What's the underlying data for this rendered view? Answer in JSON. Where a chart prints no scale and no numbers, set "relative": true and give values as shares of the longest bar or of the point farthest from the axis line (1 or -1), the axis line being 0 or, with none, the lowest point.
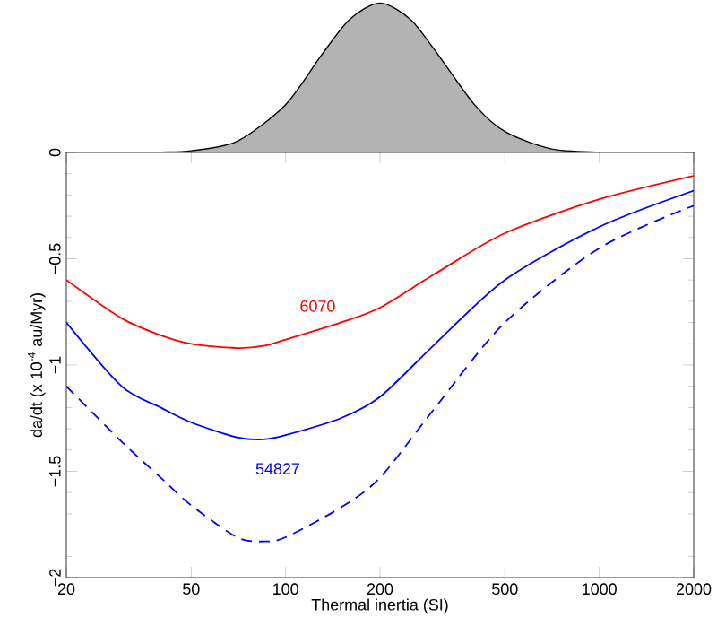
{
  "chart_data": [
    {
      "type": "area",
      "relative": true,
      "log": "x",
      "xlim": [
        20,
        2000
      ],
      "color": "#b3b3b3",
      "x": [
        20,
        30,
        40,
        50,
        70,
        100,
        130,
        160,
        200,
        250,
        300,
        400,
        500,
        700,
        1000,
        1500,
        2000
      ],
      "values": [
        0,
        0,
        0.002,
        0.011,
        0.074,
        0.32,
        0.65,
        0.89,
        1,
        0.89,
        0.68,
        0.32,
        0.14,
        0.025,
        0.002,
        0,
        0
      ]
    },
    {
      "type": "line",
      "log": "x",
      "xlim": [
        20,
        2000
      ],
      "ylim": [
        -2,
        0
      ],
      "xticks": [
        20,
        50,
        100,
        200,
        500,
        1000,
        2000
      ],
      "yticks": [
        {
          "value": -2,
          "label": "−2"
        },
        {
          "value": -1.5,
          "label": "−1.5"
        },
        {
          "value": -1,
          "label": "−1"
        },
        {
          "value": -0.5,
          "label": "−0.5"
        },
        0
      ],
      "xlabel": "Thermal inertia (SI)",
      "ylabel": "da/dt (x 10$^{-4}$ au/Myr)",
      "marker": "none",
      "x": [
        20,
        30,
        40,
        50,
        70,
        85,
        100,
        150,
        200,
        300,
        500,
        1000,
        2000
      ],
      "series": [
        {
          "name": "6070",
          "color": "#ff0000",
          "line_style": "solid",
          "values": [
            -0.6,
            -0.78,
            -0.86,
            -0.9,
            -0.92,
            -0.91,
            -0.88,
            -0.8,
            -0.73,
            -0.57,
            -0.38,
            -0.22,
            -0.11
          ]
        },
        {
          "name": "54827",
          "color": "#0000ff",
          "line_style": "solid",
          "values": [
            -0.8,
            -1.1,
            -1.2,
            -1.27,
            -1.34,
            -1.35,
            -1.33,
            -1.25,
            -1.15,
            -0.9,
            -0.6,
            -0.35,
            -0.18
          ]
        },
        {
          "color": "#0000ff",
          "line_style": "dashed",
          "values": [
            -1.1,
            -1.36,
            -1.53,
            -1.66,
            -1.81,
            -1.83,
            -1.81,
            -1.67,
            -1.53,
            -1.2,
            -0.8,
            -0.45,
            -0.25
          ]
        }
      ]
    }
  ]
}
